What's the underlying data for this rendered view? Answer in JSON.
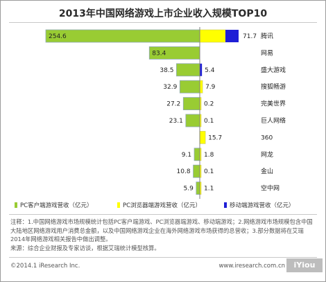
{
  "chart_data": {
    "type": "bar",
    "orientation": "horizontal",
    "stacked": true,
    "title": "2013年中国网络游戏上市企业收入规模TOP10",
    "categories": [
      "腾讯",
      "网易",
      "盛大游戏",
      "搜狐畅游",
      "完美世界",
      "巨人网络",
      "360",
      "网龙",
      "金山",
      "空中网"
    ],
    "series": [
      {
        "name": "PC客户端游戏营收（亿元）",
        "color": "#99cc33",
        "values": [
          254.6,
          83.4,
          38.5,
          32.9,
          27.2,
          23.1,
          null,
          9.1,
          10.8,
          5.9
        ]
      },
      {
        "name": "PC浏览器端游戏营收（亿元）",
        "color": "#ffff00",
        "values": [
          71.7,
          null,
          null,
          7.9,
          0.2,
          0.1,
          15.7,
          1.8,
          0.1,
          1.1
        ]
      },
      {
        "name": "移动端游戏营收（亿元）",
        "color": "#1f1fd6",
        "values": [
          null,
          null,
          5.4,
          null,
          null,
          null,
          null,
          null,
          null,
          null
        ]
      }
    ],
    "grid": false,
    "legend_position": "bottom"
  },
  "notes": "注释：1.中国网络游戏市场规模统计包括PC客户端游戏、PC浏览器端游戏、移动端游戏；2.网络游戏市场规模包含中国大陆地区网络游戏用户消费总金额，以及中国网络游戏企业在海外网络游戏市场获得的总营收；3.部分数据将在艾瑞2014年网络游戏相关报告中做出调整。",
  "source": "来源：综合企业财报及专家访谈，根据艾瑞统计模型核算。",
  "copyright": "©2014.1 iResearch Inc.",
  "website": "www.iresearch.com.cn",
  "watermark": "iYiou"
}
